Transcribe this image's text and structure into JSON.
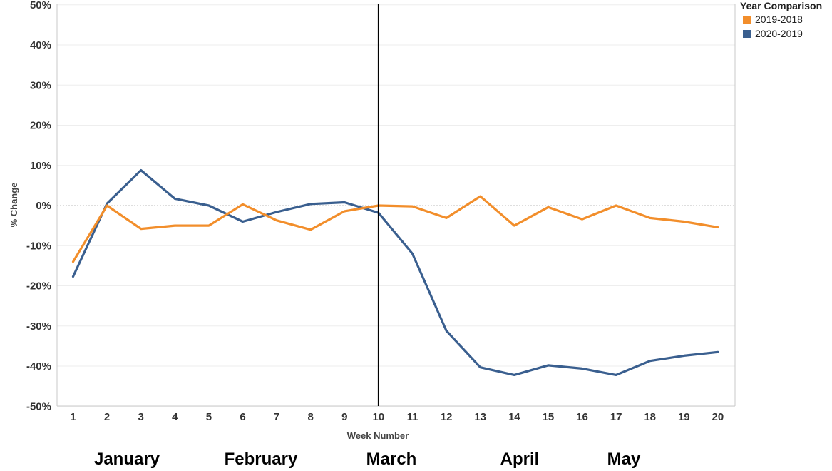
{
  "legend": {
    "title": "Year Comparison"
  },
  "months": [
    "January",
    "February",
    "March",
    "April",
    "May"
  ],
  "chart_data": {
    "type": "line",
    "title": "",
    "xlabel": "Week Number",
    "ylabel": "% Change",
    "x": [
      1,
      2,
      3,
      4,
      5,
      6,
      7,
      8,
      9,
      10,
      11,
      12,
      13,
      14,
      15,
      16,
      17,
      18,
      19,
      20
    ],
    "ylim": [
      -50,
      50
    ],
    "yticks": [
      "50%",
      "40%",
      "30%",
      "20%",
      "10%",
      "0%",
      "-10%",
      "-20%",
      "-30%",
      "-40%",
      "-50%"
    ],
    "reference_line_x": 10,
    "series": [
      {
        "name": "2019-2018",
        "color": "#f28e2b",
        "values": [
          -14,
          0,
          -5.8,
          -5,
          -5,
          0.3,
          -3.7,
          -6,
          -1.4,
          0,
          -0.2,
          -3.1,
          2.3,
          -5,
          -0.4,
          -3.4,
          0,
          -3.1,
          -4,
          -5.4
        ]
      },
      {
        "name": "2020-2019",
        "color": "#3a5f8f",
        "values": [
          -17.7,
          0.5,
          8.8,
          1.7,
          0,
          -4,
          -1.6,
          0.4,
          0.8,
          -1.8,
          -12,
          -31.2,
          -40.3,
          -42.2,
          -39.8,
          -40.6,
          -42.2,
          -38.7,
          -37.4,
          -36.5
        ]
      }
    ]
  }
}
